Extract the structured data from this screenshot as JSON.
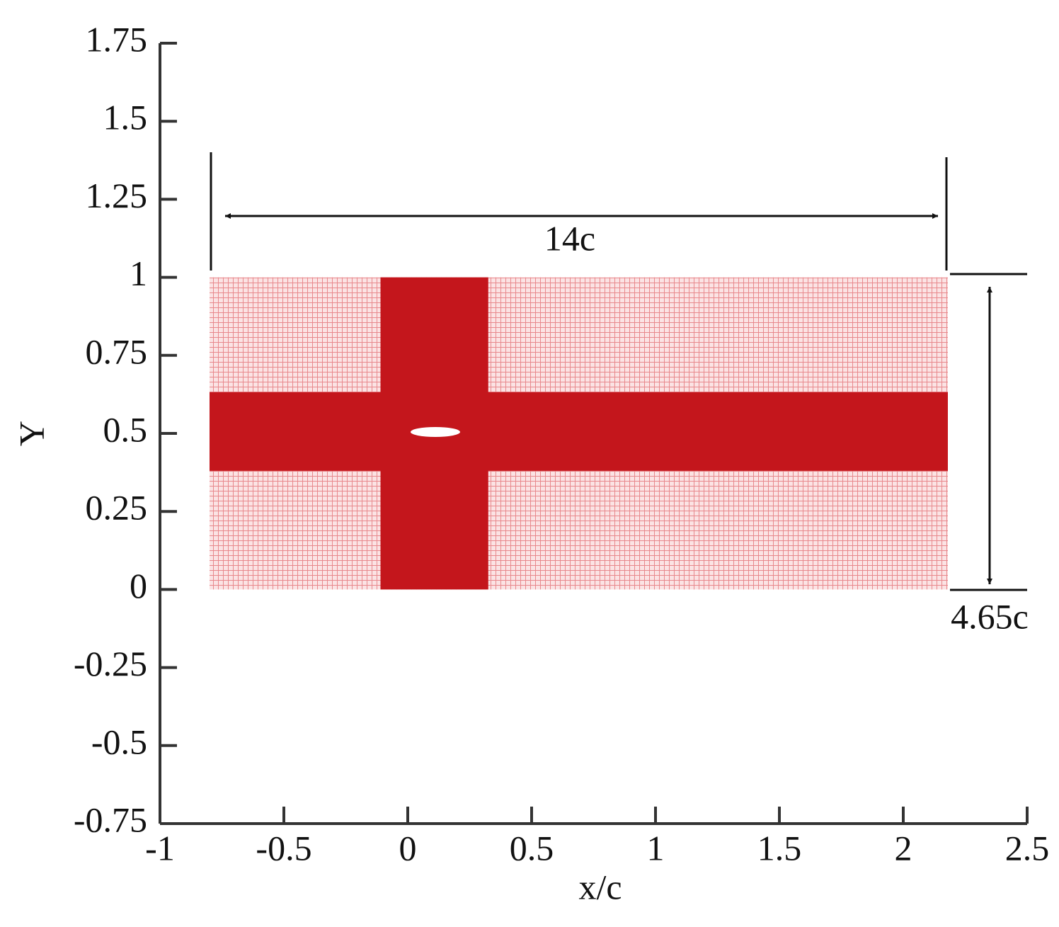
{
  "chart_data": {
    "type": "mesh",
    "xlabel": "x/c",
    "ylabel": "Y",
    "xlim": [
      -1,
      2.5
    ],
    "ylim": [
      -0.75,
      1.75
    ],
    "xticks": [
      -1,
      -0.5,
      0,
      0.5,
      1,
      1.5,
      2,
      2.5
    ],
    "yticks": [
      -0.75,
      -0.5,
      -0.25,
      0,
      0.25,
      0.5,
      0.75,
      1,
      1.25,
      1.5,
      1.75
    ],
    "color": "#c4161c",
    "domain": {
      "x": [
        -0.8,
        2.18
      ],
      "y": [
        0,
        1
      ]
    },
    "refined": [
      {
        "x": [
          -0.11,
          0.325
        ],
        "y": [
          0,
          1
        ]
      },
      {
        "x": [
          -0.8,
          2.18
        ],
        "y": [
          0.38,
          0.632
        ]
      }
    ],
    "annotations": [
      "14c",
      "4.65c"
    ]
  }
}
